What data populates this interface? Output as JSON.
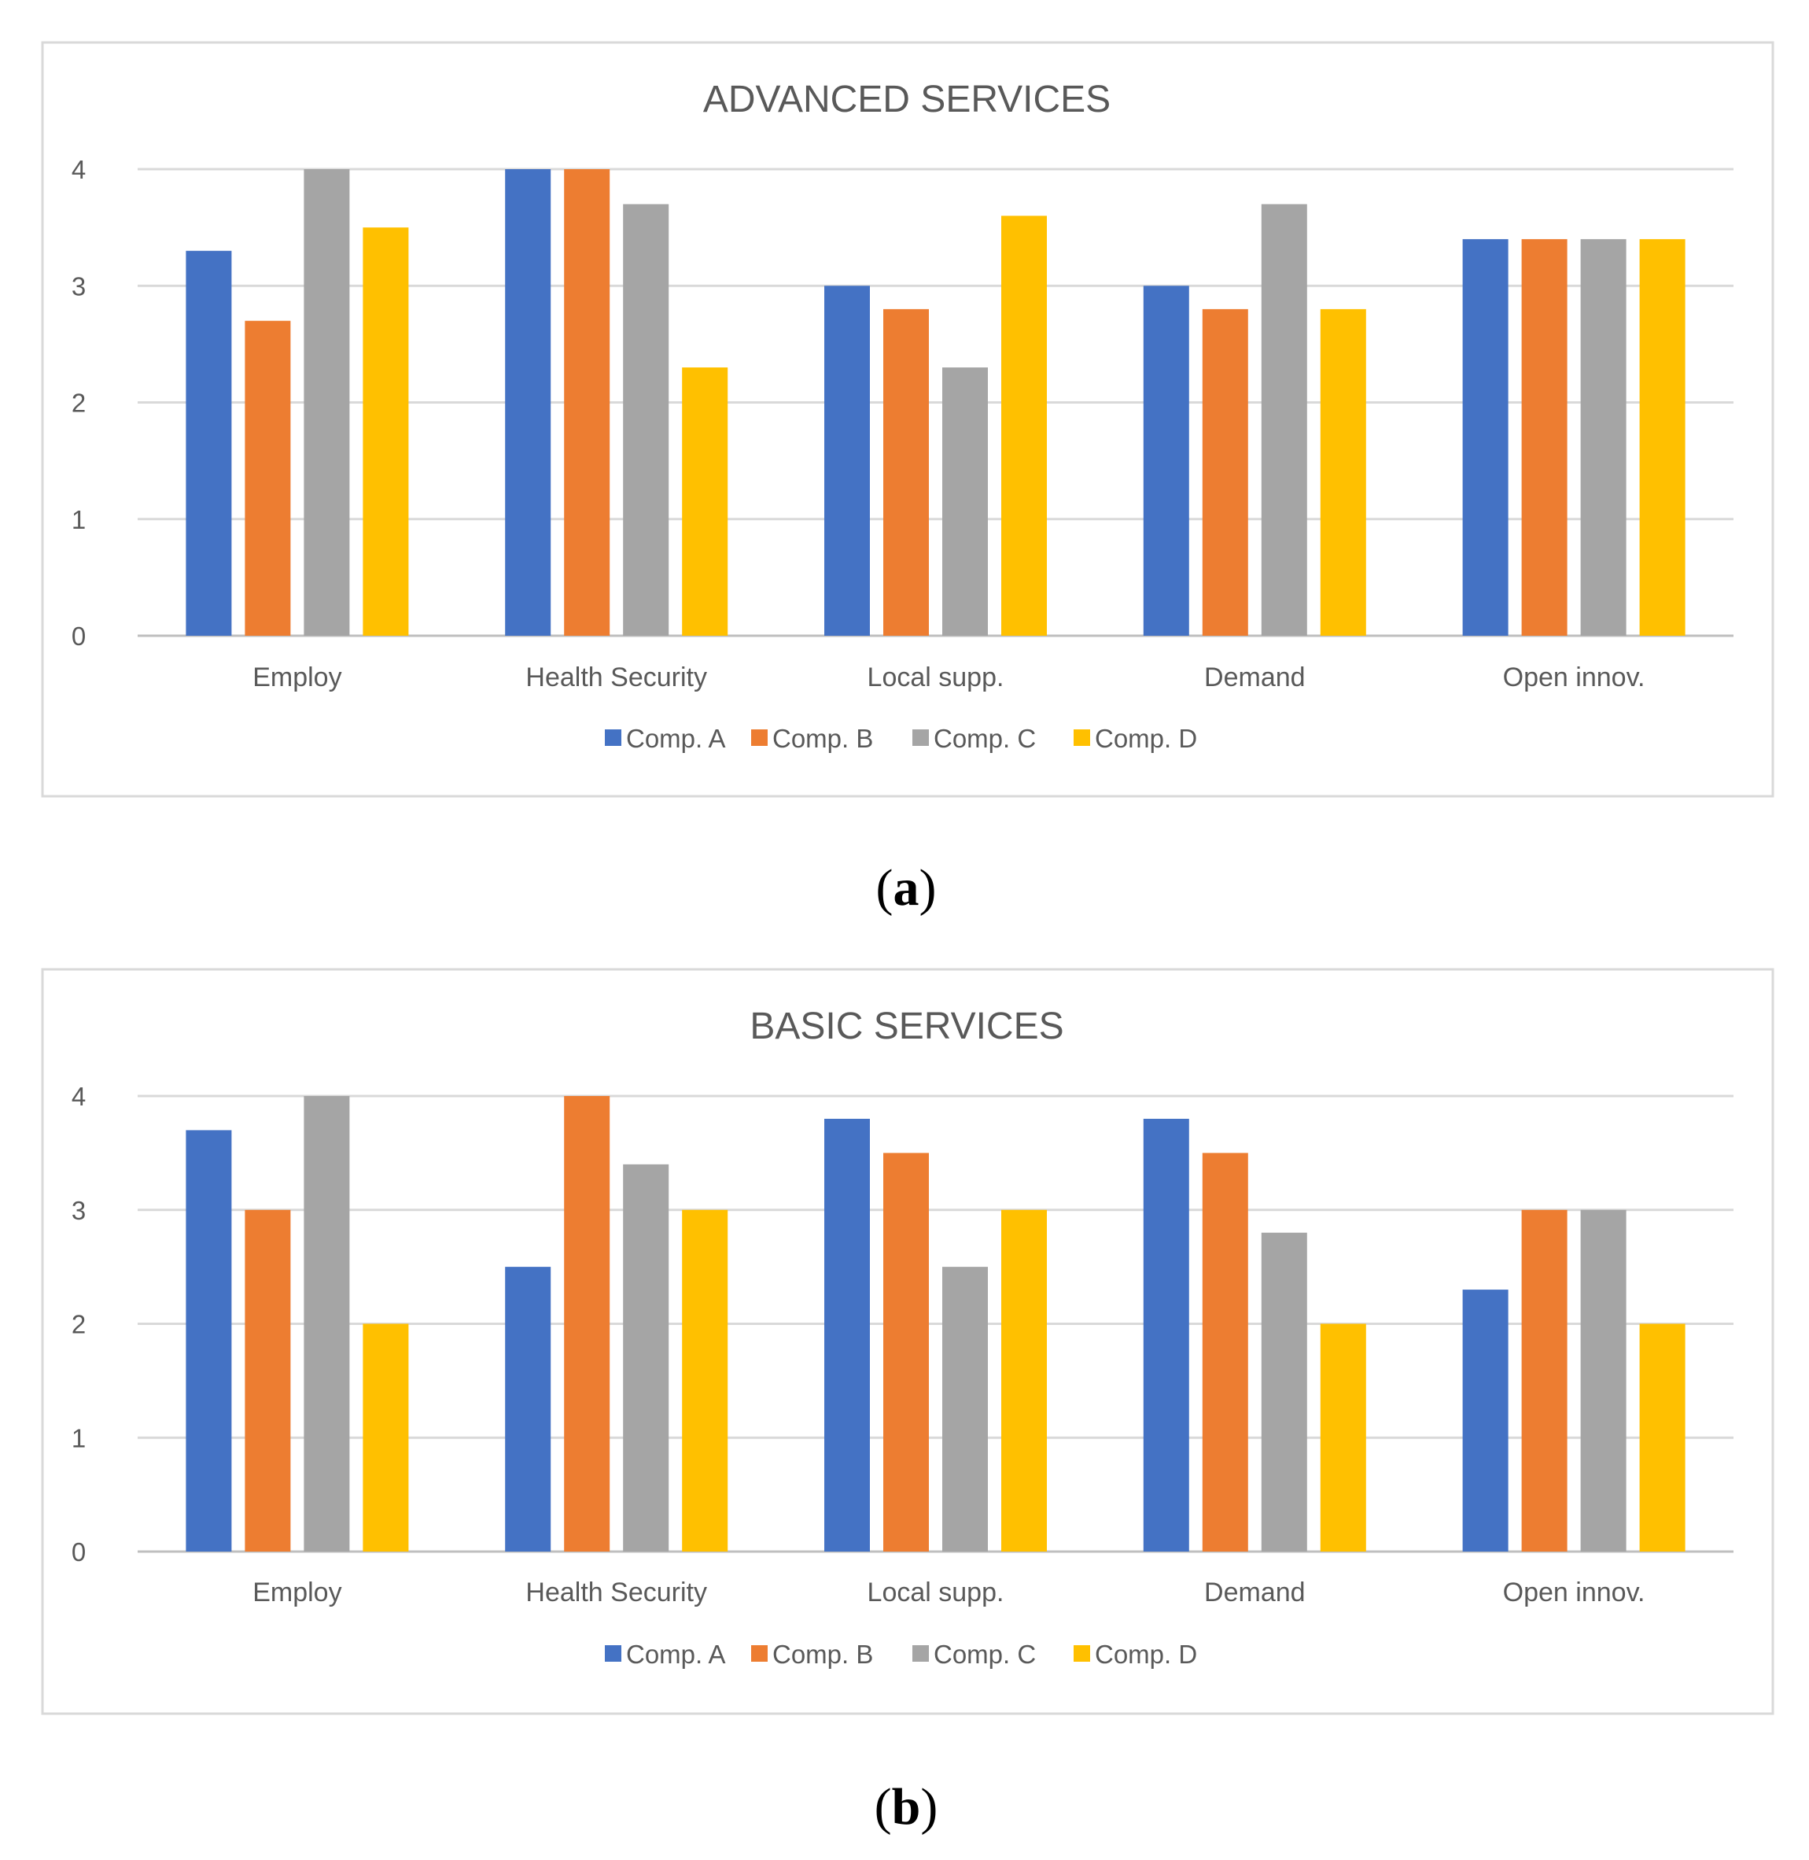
{
  "chart_data": [
    {
      "type": "bar",
      "title": "ADVANCED SERVICES",
      "caption_letter": "a",
      "categories": [
        "Employ",
        "Health Security",
        "Local supp.",
        "Demand",
        "Open innov."
      ],
      "series": [
        {
          "name": "Comp. A",
          "color": "#4472C4",
          "values": [
            3.3,
            4.0,
            3.0,
            3.0,
            3.4
          ]
        },
        {
          "name": "Comp. B",
          "color": "#ED7D31",
          "values": [
            2.7,
            4.0,
            2.8,
            2.8,
            3.4
          ]
        },
        {
          "name": "Comp. C",
          "color": "#A5A5A5",
          "values": [
            4.0,
            3.7,
            2.3,
            3.7,
            3.4
          ]
        },
        {
          "name": "Comp. D",
          "color": "#FFC000",
          "values": [
            3.5,
            2.3,
            3.6,
            2.8,
            3.4
          ]
        }
      ],
      "yticks": [
        "0",
        "1",
        "2",
        "3",
        "4"
      ],
      "ylim": [
        0,
        4
      ],
      "grid": true,
      "legend_position": "bottom"
    },
    {
      "type": "bar",
      "title": "BASIC SERVICES",
      "caption_letter": "b",
      "categories": [
        "Employ",
        "Health Security",
        "Local supp.",
        "Demand",
        "Open innov."
      ],
      "series": [
        {
          "name": "Comp. A",
          "color": "#4472C4",
          "values": [
            3.7,
            2.5,
            3.8,
            3.8,
            2.3
          ]
        },
        {
          "name": "Comp. B",
          "color": "#ED7D31",
          "values": [
            3.0,
            4.0,
            3.5,
            3.5,
            3.0
          ]
        },
        {
          "name": "Comp. C",
          "color": "#A5A5A5",
          "values": [
            4.0,
            3.4,
            2.5,
            2.8,
            3.0
          ]
        },
        {
          "name": "Comp. D",
          "color": "#FFC000",
          "values": [
            2.0,
            3.0,
            3.0,
            2.0,
            2.0
          ]
        }
      ],
      "yticks": [
        "0",
        "1",
        "2",
        "3",
        "4"
      ],
      "ylim": [
        0,
        4
      ],
      "grid": true,
      "legend_position": "bottom"
    }
  ]
}
